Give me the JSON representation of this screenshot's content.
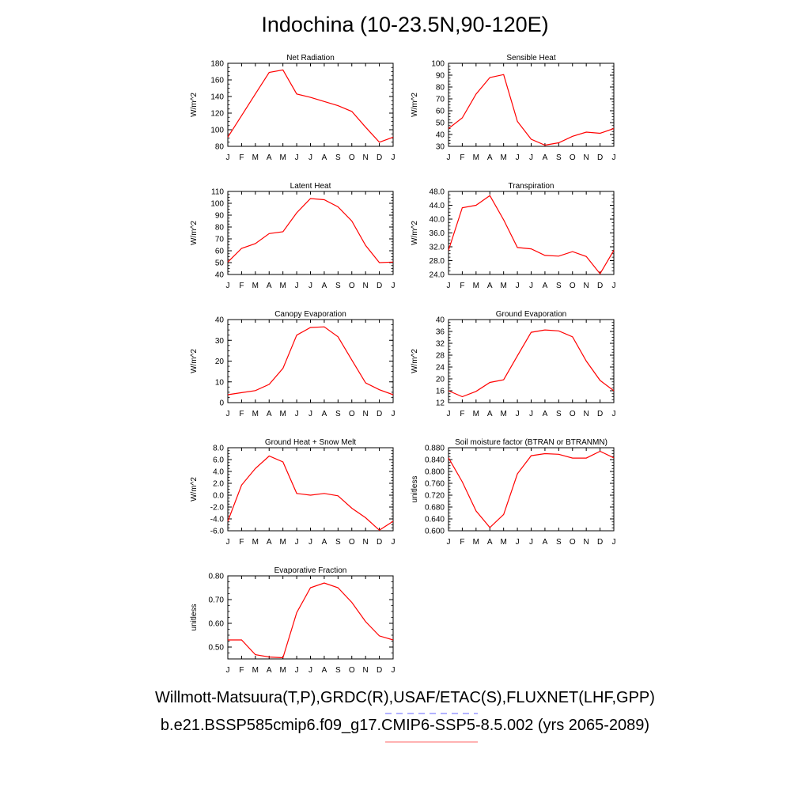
{
  "title": "Indochina (10-23.5N,90-120E)",
  "colors": {
    "series": "#ff0000",
    "legend_obs": "#0000ff",
    "legend_model": "#ff0000"
  },
  "month_labels": [
    "J",
    "F",
    "M",
    "A",
    "M",
    "J",
    "J",
    "A",
    "S",
    "O",
    "N",
    "D",
    "J"
  ],
  "chart_data": [
    {
      "type": "line",
      "title": "Net Radiation",
      "ylabel": "W/m^2",
      "ylim": [
        80,
        180
      ],
      "yticks": [
        80,
        100,
        120,
        140,
        160,
        180
      ],
      "ytick_labels": [
        "80",
        "100",
        "120",
        "140",
        "160",
        "180"
      ],
      "x": [
        "J",
        "F",
        "M",
        "A",
        "M",
        "J",
        "J",
        "A",
        "S",
        "O",
        "N",
        "D",
        "J"
      ],
      "series": [
        {
          "values": [
            91,
            117,
            143,
            169,
            172,
            143,
            139,
            134,
            129,
            122,
            103,
            85,
            91
          ]
        }
      ]
    },
    {
      "type": "line",
      "title": "Sensible Heat",
      "ylabel": "W/m^2",
      "ylim": [
        30,
        100
      ],
      "yticks": [
        30,
        40,
        50,
        60,
        70,
        80,
        90,
        100
      ],
      "ytick_labels": [
        "30",
        "40",
        "50",
        "60",
        "70",
        "80",
        "90",
        "100"
      ],
      "x": [
        "J",
        "F",
        "M",
        "A",
        "M",
        "J",
        "J",
        "A",
        "S",
        "O",
        "N",
        "D",
        "J"
      ],
      "series": [
        {
          "values": [
            45,
            54,
            74,
            88,
            90.5,
            51,
            36,
            31,
            33,
            38.5,
            42,
            41,
            45
          ]
        }
      ]
    },
    {
      "type": "line",
      "title": "Latent Heat",
      "ylabel": "W/m^2",
      "ylim": [
        40,
        110
      ],
      "yticks": [
        40,
        50,
        60,
        70,
        80,
        90,
        100,
        110
      ],
      "ytick_labels": [
        "40",
        "50",
        "60",
        "70",
        "80",
        "90",
        "100",
        "110"
      ],
      "x": [
        "J",
        "F",
        "M",
        "A",
        "M",
        "J",
        "J",
        "A",
        "S",
        "O",
        "N",
        "D",
        "J"
      ],
      "series": [
        {
          "values": [
            50.5,
            62,
            66,
            74.5,
            76,
            92,
            104,
            103,
            97,
            85,
            64.5,
            50,
            50.5
          ]
        }
      ]
    },
    {
      "type": "line",
      "title": "Transpiration",
      "ylabel": "W/m^2",
      "ylim": [
        24,
        48
      ],
      "yticks": [
        24,
        28,
        32,
        36,
        40,
        44,
        48
      ],
      "ytick_labels": [
        "24.0",
        "28.0",
        "32.0",
        "36.0",
        "40.0",
        "44.0",
        "48.0"
      ],
      "x": [
        "J",
        "F",
        "M",
        "A",
        "M",
        "J",
        "J",
        "A",
        "S",
        "O",
        "N",
        "D",
        "J"
      ],
      "series": [
        {
          "values": [
            31,
            43.3,
            44,
            46.8,
            39.8,
            31.8,
            31.4,
            29.5,
            29.3,
            30.6,
            29.2,
            24.2,
            31
          ]
        }
      ]
    },
    {
      "type": "line",
      "title": "Canopy Evaporation",
      "ylabel": "W/m^2",
      "ylim": [
        0,
        40
      ],
      "yticks": [
        0,
        10,
        20,
        30,
        40
      ],
      "ytick_labels": [
        "0",
        "10",
        "20",
        "30",
        "40"
      ],
      "x": [
        "J",
        "F",
        "M",
        "A",
        "M",
        "J",
        "J",
        "A",
        "S",
        "O",
        "N",
        "D",
        "J"
      ],
      "series": [
        {
          "values": [
            3.8,
            4.8,
            5.8,
            8.8,
            16.5,
            32.5,
            36.2,
            36.5,
            31.7,
            20.5,
            9.5,
            6.2,
            3.8
          ]
        }
      ]
    },
    {
      "type": "line",
      "title": "Ground Evaporation",
      "ylabel": "W/m^2",
      "ylim": [
        12,
        40
      ],
      "yticks": [
        12,
        16,
        20,
        24,
        28,
        32,
        36,
        40
      ],
      "ytick_labels": [
        "12",
        "16",
        "20",
        "24",
        "28",
        "32",
        "36",
        "40"
      ],
      "x": [
        "J",
        "F",
        "M",
        "A",
        "M",
        "J",
        "J",
        "A",
        "S",
        "O",
        "N",
        "D",
        "J"
      ],
      "series": [
        {
          "values": [
            16,
            14,
            15.8,
            18.8,
            19.7,
            27.8,
            35.7,
            36.5,
            36.2,
            34.2,
            26,
            19.5,
            16
          ]
        }
      ]
    },
    {
      "type": "line",
      "title": "Ground Heat + Snow Melt",
      "ylabel": "W/m^2",
      "ylim": [
        -6,
        8
      ],
      "yticks": [
        -6,
        -4,
        -2,
        0,
        2,
        4,
        6,
        8
      ],
      "ytick_labels": [
        "-6.0",
        "-4.0",
        "-2.0",
        "0.0",
        "2.0",
        "4.0",
        "6.0",
        "8.0"
      ],
      "x": [
        "J",
        "F",
        "M",
        "A",
        "M",
        "J",
        "J",
        "A",
        "S",
        "O",
        "N",
        "D",
        "J"
      ],
      "series": [
        {
          "values": [
            -4.4,
            1.7,
            4.5,
            6.6,
            5.6,
            0.3,
            0,
            0.3,
            -0.1,
            -2.2,
            -3.8,
            -5.9,
            -4.4
          ]
        }
      ]
    },
    {
      "type": "line",
      "title": "Soil moisture factor (BTRAN or BTRANMN)",
      "ylabel": "unitless",
      "ylim": [
        0.6,
        0.88
      ],
      "yticks": [
        0.6,
        0.64,
        0.68,
        0.72,
        0.76,
        0.8,
        0.84,
        0.88
      ],
      "ytick_labels": [
        "0.600",
        "0.640",
        "0.680",
        "0.720",
        "0.760",
        "0.800",
        "0.840",
        "0.880"
      ],
      "x": [
        "J",
        "F",
        "M",
        "A",
        "M",
        "J",
        "J",
        "A",
        "S",
        "O",
        "N",
        "D",
        "J"
      ],
      "series": [
        {
          "values": [
            0.846,
            0.765,
            0.667,
            0.611,
            0.655,
            0.792,
            0.853,
            0.86,
            0.858,
            0.845,
            0.845,
            0.868,
            0.846
          ]
        }
      ]
    },
    {
      "type": "line",
      "title": "Evaporative Fraction",
      "ylabel": "unitless",
      "ylim": [
        0.45,
        0.8
      ],
      "yticks": [
        0.5,
        0.6,
        0.7,
        0.8
      ],
      "ytick_labels": [
        "0.50",
        "0.60",
        "0.70",
        "0.80"
      ],
      "x": [
        "J",
        "F",
        "M",
        "A",
        "M",
        "J",
        "J",
        "A",
        "S",
        "O",
        "N",
        "D",
        "J"
      ],
      "series": [
        {
          "values": [
            0.53,
            0.53,
            0.468,
            0.458,
            0.455,
            0.645,
            0.75,
            0.77,
            0.75,
            0.688,
            0.607,
            0.547,
            0.53
          ]
        }
      ]
    }
  ],
  "legend": {
    "observations": "Willmott-Matsuura(T,P),GRDC(R),USAF/ETAC(S),FLUXNET(LHF,GPP)",
    "model": "b.e21.BSSP585cmip6.f09_g17.CMIP6-SSP5-8.5.002 (yrs 2065-2089)"
  }
}
